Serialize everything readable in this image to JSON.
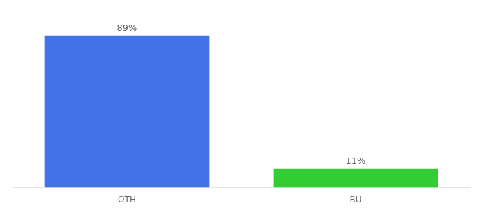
{
  "chart_data": {
    "type": "bar",
    "categories": [
      "OTH",
      "RU"
    ],
    "values": [
      89,
      11
    ],
    "value_labels": [
      "89%",
      "11%"
    ],
    "colors": [
      "#4472e8",
      "#33cc33"
    ],
    "ylim": [
      0,
      100
    ],
    "grid": false,
    "data_labels": true,
    "tick_labels": "x"
  }
}
